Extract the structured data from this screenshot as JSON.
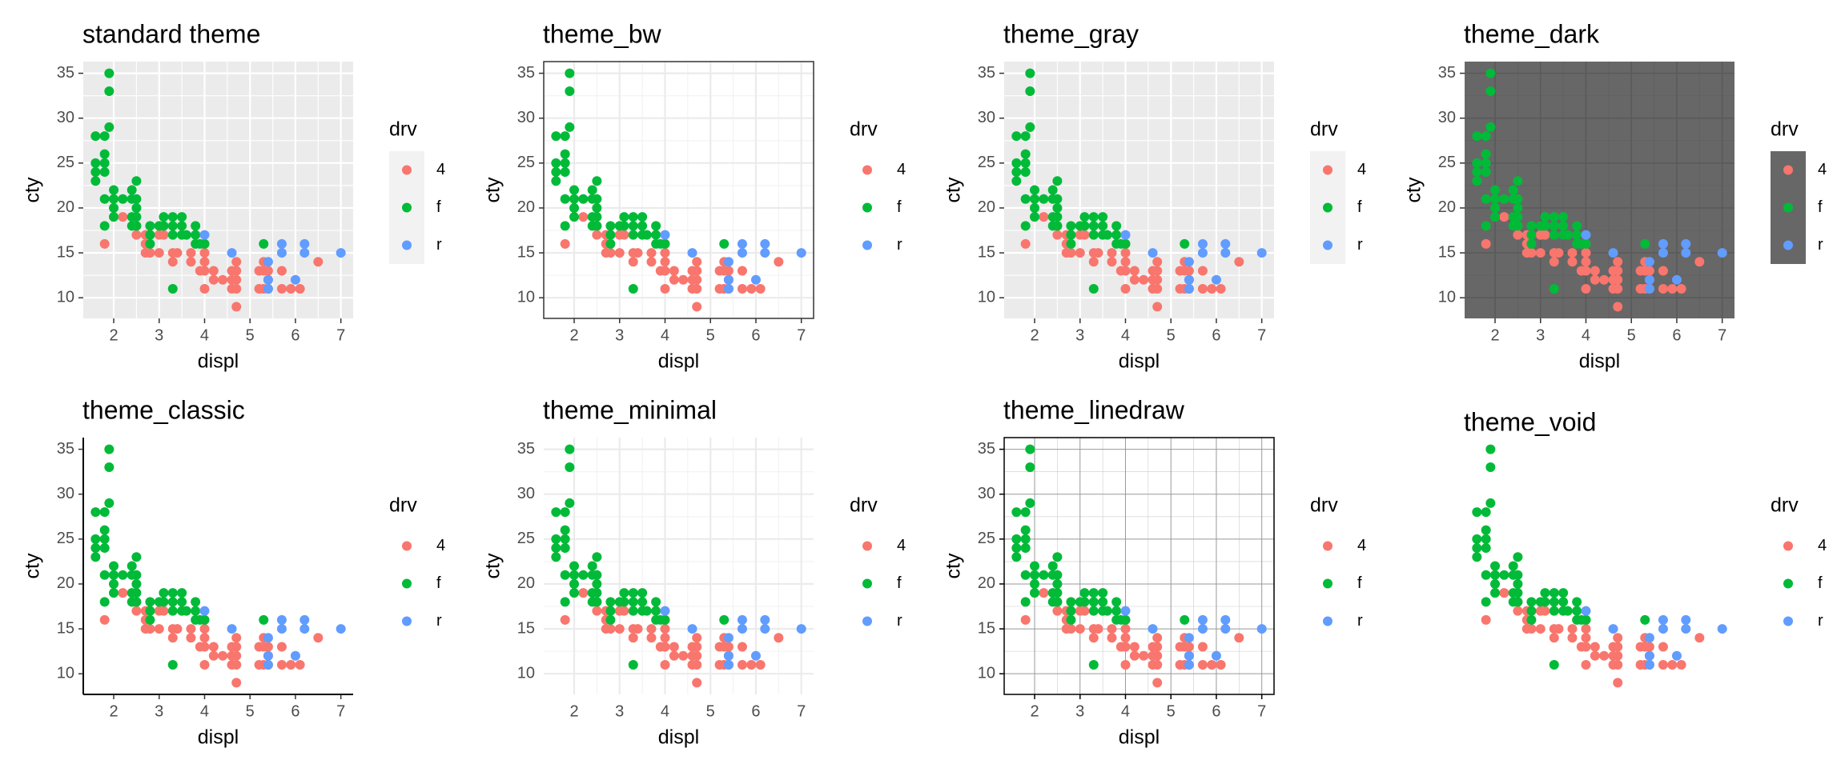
{
  "chart_data": {
    "type": "scatter",
    "x_label": "displ",
    "y_label": "cty",
    "legend_title": "drv",
    "xlim": [
      1.33,
      7.27
    ],
    "ylim": [
      7.7,
      36.3
    ],
    "xticks": [
      2,
      3,
      4,
      5,
      6,
      7
    ],
    "yticks": [
      10,
      15,
      20,
      25,
      30,
      35
    ],
    "panels": [
      {
        "title": "standard theme",
        "theme": "gray"
      },
      {
        "title": "theme_bw",
        "theme": "bw"
      },
      {
        "title": "theme_gray",
        "theme": "gray"
      },
      {
        "title": "theme_dark",
        "theme": "dark"
      },
      {
        "title": "theme_classic",
        "theme": "classic"
      },
      {
        "title": "theme_minimal",
        "theme": "minimal"
      },
      {
        "title": "theme_linedraw",
        "theme": "linedraw"
      },
      {
        "title": "theme_void",
        "theme": "void"
      }
    ],
    "series": [
      {
        "name": "4",
        "color": "#F8766D",
        "x": [
          1.8,
          2.2,
          2.5,
          2.5,
          2.7,
          2.7,
          2.7,
          2.8,
          2.8,
          3.0,
          3.0,
          3.1,
          3.3,
          3.3,
          3.4,
          3.7,
          3.7,
          3.9,
          4.0,
          4.0,
          4.0,
          4.0,
          4.0,
          4.2,
          4.2,
          4.4,
          4.6,
          4.6,
          4.6,
          4.7,
          4.7,
          4.7,
          4.7,
          4.7,
          5.2,
          5.2,
          5.3,
          5.3,
          5.3,
          5.4,
          5.4,
          5.4,
          5.7,
          5.7,
          5.9,
          6.1,
          6.5
        ],
        "values": [
          16,
          19,
          18,
          17,
          17,
          15,
          16,
          15,
          17,
          15,
          17,
          17,
          15,
          14,
          15,
          15,
          14,
          13,
          14,
          15,
          13,
          16,
          11,
          12,
          13,
          12,
          13,
          12,
          11,
          9,
          12,
          13,
          14,
          11,
          11,
          13,
          14,
          11,
          13,
          11,
          12,
          13,
          11,
          13,
          11,
          11,
          14
        ]
      },
      {
        "name": "f",
        "color": "#00BA38",
        "x": [
          1.6,
          1.6,
          1.6,
          1.6,
          1.8,
          1.8,
          1.8,
          1.8,
          1.8,
          1.8,
          1.9,
          1.9,
          1.9,
          2.0,
          2.0,
          2.0,
          2.0,
          2.2,
          2.4,
          2.4,
          2.4,
          2.4,
          2.5,
          2.5,
          2.5,
          2.5,
          2.5,
          2.8,
          2.8,
          2.8,
          3.0,
          3.1,
          3.1,
          3.3,
          3.3,
          3.3,
          3.3,
          3.5,
          3.5,
          3.5,
          3.6,
          3.8,
          3.8,
          3.8,
          3.9,
          4.0,
          5.3
        ],
        "values": [
          28,
          24,
          25,
          23,
          21,
          18,
          26,
          25,
          24,
          28,
          33,
          35,
          29,
          21,
          19,
          20,
          22,
          21,
          19,
          21,
          22,
          18,
          20,
          18,
          21,
          23,
          19,
          16,
          17,
          18,
          18,
          18,
          19,
          17,
          18,
          19,
          11,
          19,
          18,
          17,
          17,
          16,
          17,
          18,
          16,
          16,
          16
        ]
      },
      {
        "name": "r",
        "color": "#619CFF",
        "x": [
          4.0,
          4.6,
          5.4,
          5.4,
          5.4,
          5.7,
          5.7,
          6.0,
          6.2,
          6.2,
          7.0
        ],
        "values": [
          17,
          15,
          12,
          11,
          14,
          16,
          15,
          12,
          16,
          15,
          15
        ]
      }
    ]
  }
}
